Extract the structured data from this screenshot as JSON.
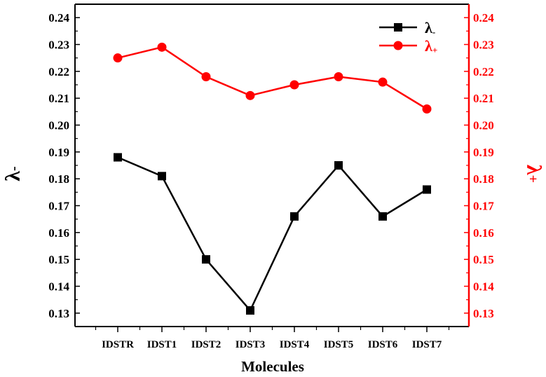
{
  "chart_data": {
    "type": "line",
    "categories": [
      "IDSTR",
      "IDST1",
      "IDST2",
      "IDST3",
      "IDST4",
      "IDST5",
      "IDST6",
      "IDST7"
    ],
    "xlabel": "Molecules",
    "y_left": {
      "label": "λ-",
      "range": [
        0.125,
        0.245
      ],
      "ticks": [
        "0.13",
        "0.14",
        "0.15",
        "0.16",
        "0.17",
        "0.18",
        "0.19",
        "0.20",
        "0.21",
        "0.22",
        "0.23",
        "0.24"
      ],
      "color": "#000000"
    },
    "y_right": {
      "label": "λ+",
      "range": [
        0.125,
        0.245
      ],
      "ticks": [
        "0.13",
        "0.14",
        "0.15",
        "0.16",
        "0.17",
        "0.18",
        "0.19",
        "0.20",
        "0.21",
        "0.22",
        "0.23",
        "0.24"
      ],
      "color": "#ff0000"
    },
    "series": [
      {
        "name": "λ-",
        "legend_main": "λ",
        "legend_sub": "-",
        "axis": "left",
        "marker": "square",
        "color": "#000000",
        "values": [
          0.188,
          0.181,
          0.15,
          0.131,
          0.166,
          0.185,
          0.166,
          0.176
        ]
      },
      {
        "name": "λ+",
        "legend_main": "λ",
        "legend_sub": "+",
        "axis": "right",
        "marker": "circle",
        "color": "#ff0000",
        "values": [
          0.225,
          0.229,
          0.218,
          0.211,
          0.215,
          0.218,
          0.216,
          0.206
        ]
      }
    ],
    "legend_position": "top-right",
    "grid": false
  }
}
